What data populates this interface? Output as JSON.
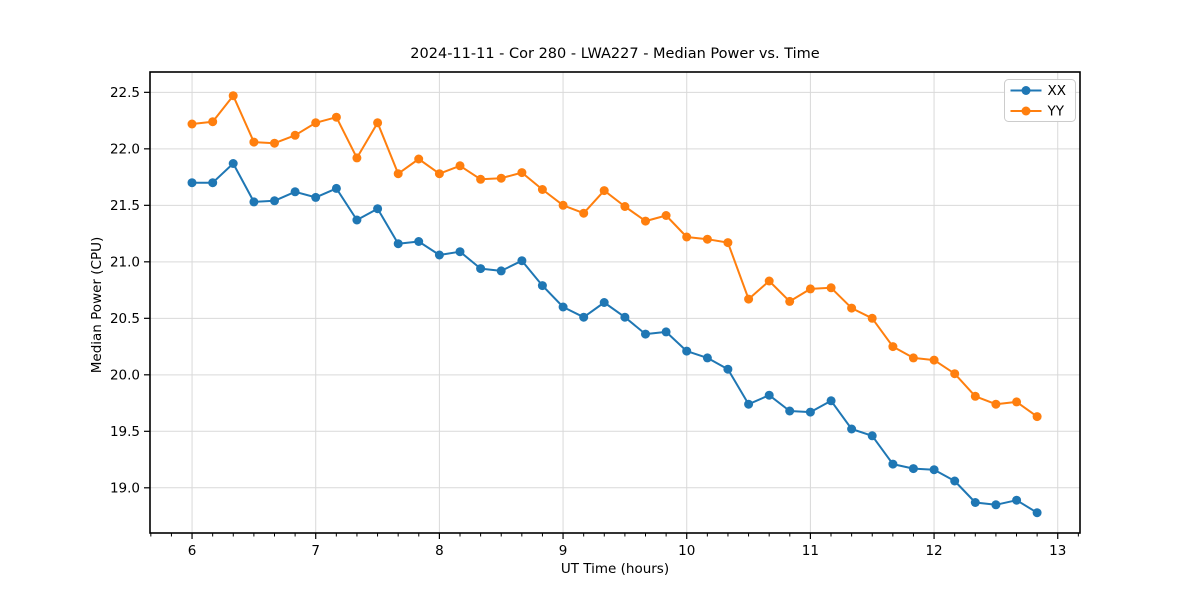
{
  "chart_data": {
    "type": "line",
    "title": "2024-11-11 - Cor 280 - LWA227 - Median Power vs. Time",
    "xlabel": "UT Time (hours)",
    "ylabel": "Median Power (CPU)",
    "xlim": [
      5.66,
      13.18
    ],
    "ylim": [
      18.6,
      22.68
    ],
    "xticks": [
      6,
      7,
      8,
      9,
      10,
      11,
      12,
      13
    ],
    "yticks": [
      19.0,
      19.5,
      20.0,
      20.5,
      21.0,
      21.5,
      22.0,
      22.5
    ],
    "minor_xtick_step": 0.1666667,
    "grid": true,
    "grid_color": "#d9d9d9",
    "legend_position": "upper right",
    "x": [
      6.0,
      6.167,
      6.333,
      6.5,
      6.667,
      6.833,
      7.0,
      7.167,
      7.333,
      7.5,
      7.667,
      7.833,
      8.0,
      8.167,
      8.333,
      8.5,
      8.667,
      8.833,
      9.0,
      9.167,
      9.333,
      9.5,
      9.667,
      9.833,
      10.0,
      10.167,
      10.333,
      10.5,
      10.667,
      10.833,
      11.0,
      11.167,
      11.333,
      11.5,
      11.667,
      11.833,
      12.0,
      12.167,
      12.333,
      12.5,
      12.667,
      12.833
    ],
    "series": [
      {
        "name": "XX",
        "color": "#1f77b4",
        "values": [
          21.7,
          21.7,
          21.87,
          21.53,
          21.54,
          21.62,
          21.57,
          21.65,
          21.37,
          21.47,
          21.16,
          21.18,
          21.06,
          21.09,
          20.94,
          20.92,
          21.01,
          20.79,
          20.6,
          20.51,
          20.64,
          20.51,
          20.36,
          20.38,
          20.21,
          20.15,
          20.05,
          19.74,
          19.82,
          19.68,
          19.67,
          19.77,
          19.52,
          19.46,
          19.21,
          19.17,
          19.16,
          19.06,
          18.87,
          18.85,
          18.89,
          18.78
        ]
      },
      {
        "name": "YY",
        "color": "#ff7f0e",
        "values": [
          22.22,
          22.24,
          22.47,
          22.06,
          22.05,
          22.12,
          22.23,
          22.28,
          21.92,
          22.23,
          21.78,
          21.91,
          21.78,
          21.85,
          21.73,
          21.74,
          21.79,
          21.64,
          21.5,
          21.43,
          21.63,
          21.49,
          21.36,
          21.41,
          21.22,
          21.2,
          21.17,
          20.67,
          20.83,
          20.65,
          20.76,
          20.77,
          20.59,
          20.5,
          20.25,
          20.15,
          20.13,
          20.01,
          19.81,
          19.74,
          19.76,
          19.63
        ]
      }
    ]
  },
  "legend": {
    "items": [
      {
        "label": "XX",
        "color": "#1f77b4"
      },
      {
        "label": "YY",
        "color": "#ff7f0e"
      }
    ]
  },
  "colors": {
    "background": "#ffffff",
    "spine": "#000000",
    "grid": "#d9d9d9",
    "series_xx": "#1f77b4",
    "series_yy": "#ff7f0e",
    "legend_border": "#cccccc"
  }
}
